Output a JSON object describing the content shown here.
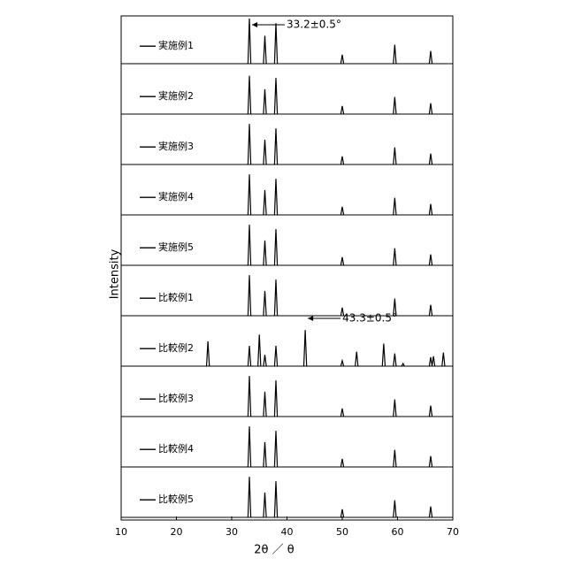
{
  "chart_data": {
    "type": "xrd-stack",
    "x_label": "2θ ／ θ",
    "y_label": "Intensity",
    "xlim": [
      10,
      70
    ],
    "xticks": [
      10,
      20,
      30,
      40,
      50,
      60,
      70
    ],
    "color": "#000000",
    "annotations": [
      {
        "text": "33.2±0.5°",
        "series": 0,
        "peak": 0
      },
      {
        "text": "43.3±0.5°",
        "series": 6,
        "peak": 5
      }
    ],
    "series": [
      {
        "name": "実施例1",
        "x": [
          33.2,
          36,
          38,
          50,
          59.5,
          66
        ],
        "values": [
          100,
          62,
          90,
          20,
          42,
          28
        ]
      },
      {
        "name": "実施例2",
        "x": [
          33.2,
          36,
          38,
          50,
          59.5,
          66
        ],
        "values": [
          85,
          55,
          80,
          18,
          38,
          24
        ]
      },
      {
        "name": "実施例3",
        "x": [
          33.2,
          36,
          38,
          50,
          59.5,
          66
        ],
        "values": [
          90,
          55,
          80,
          18,
          38,
          24
        ]
      },
      {
        "name": "実施例4",
        "x": [
          33.2,
          36,
          38,
          50,
          59.5,
          66
        ],
        "values": [
          90,
          55,
          80,
          18,
          38,
          24
        ]
      },
      {
        "name": "実施例5",
        "x": [
          33.2,
          36,
          38,
          50,
          59.5,
          66
        ],
        "values": [
          90,
          55,
          80,
          18,
          38,
          24
        ]
      },
      {
        "name": "比較例1",
        "x": [
          33.2,
          36,
          38,
          50,
          59.5,
          66
        ],
        "values": [
          90,
          55,
          80,
          18,
          38,
          24
        ]
      },
      {
        "name": "比較例2",
        "x": [
          25.7,
          33.2,
          35,
          36,
          38,
          43.3,
          50,
          52.6,
          57.5,
          59.5,
          61,
          66,
          66.5,
          68.3
        ],
        "values": [
          55,
          45,
          70,
          25,
          45,
          80,
          12,
          32,
          50,
          28,
          6,
          20,
          22,
          30
        ]
      },
      {
        "name": "比較例3",
        "x": [
          33.2,
          36,
          38,
          50,
          59.5,
          66
        ],
        "values": [
          90,
          55,
          80,
          18,
          38,
          24
        ]
      },
      {
        "name": "比較例4",
        "x": [
          33.2,
          36,
          38,
          50,
          59.5,
          66
        ],
        "values": [
          90,
          55,
          80,
          18,
          38,
          24
        ]
      },
      {
        "name": "比較例5",
        "x": [
          33.2,
          36,
          38,
          50,
          59.5,
          66
        ],
        "values": [
          90,
          55,
          80,
          18,
          38,
          24
        ]
      }
    ]
  }
}
